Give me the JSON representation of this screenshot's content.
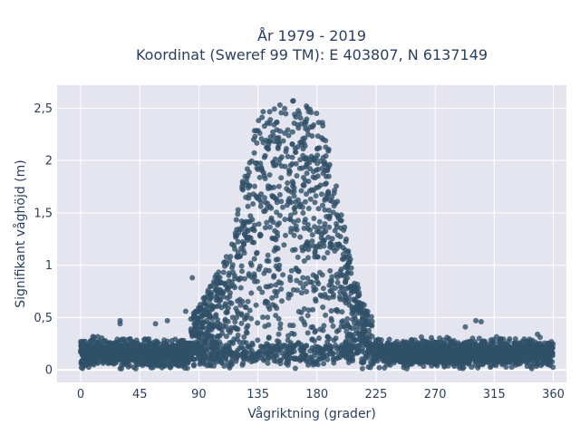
{
  "chart_data": {
    "type": "scatter",
    "title_line1": "År 1979 - 2019",
    "title_line2": "Koordinat (Sweref 99 TM): E 403807, N 6137149",
    "xlabel": "Vågriktning (grader)",
    "ylabel": "Signifikant våghöjd (m)",
    "xlim": [
      -18,
      370
    ],
    "ylim": [
      -0.12,
      2.72
    ],
    "x_ticks": [
      0,
      45,
      90,
      135,
      180,
      225,
      270,
      315,
      360
    ],
    "x_tick_labels": [
      "0",
      "45",
      "90",
      "135",
      "180",
      "225",
      "270",
      "315",
      "360"
    ],
    "y_ticks": [
      0,
      0.5,
      1,
      1.5,
      2,
      2.5
    ],
    "y_tick_labels": [
      "0",
      "0,5",
      "1",
      "1,5",
      "2",
      "2,5"
    ],
    "grid": true,
    "colors": {
      "marker": "#2f5068",
      "plot_bg": "#e5e5ef",
      "grid": "#ffffff",
      "text": "#2a3f5f"
    },
    "envelope_upper": {
      "x": [
        0,
        20,
        40,
        60,
        80,
        90,
        100,
        110,
        115,
        120,
        125,
        130,
        135,
        140,
        145,
        150,
        155,
        160,
        165,
        170,
        175,
        180,
        185,
        190,
        195,
        200,
        205,
        210,
        215,
        220,
        225,
        235,
        250,
        270,
        290,
        310,
        330,
        345,
        360
      ],
      "y": [
        0.25,
        0.27,
        0.3,
        0.35,
        0.45,
        0.6,
        0.85,
        1.1,
        1.25,
        1.55,
        1.95,
        2.3,
        2.45,
        2.5,
        2.48,
        2.52,
        2.55,
        2.58,
        2.56,
        2.52,
        2.55,
        2.5,
        2.35,
        2.05,
        1.75,
        1.45,
        1.1,
        0.85,
        0.65,
        0.55,
        0.45,
        0.35,
        0.32,
        0.3,
        0.28,
        0.28,
        0.27,
        0.3,
        0.28
      ]
    },
    "baseline_median": 0.16,
    "outliers": [
      {
        "x": 30,
        "y": 0.47
      },
      {
        "x": 30,
        "y": 0.44
      },
      {
        "x": 57,
        "y": 0.44
      },
      {
        "x": 66,
        "y": 0.47
      },
      {
        "x": 85,
        "y": 0.88
      },
      {
        "x": 80,
        "y": 0.56
      },
      {
        "x": 86,
        "y": 0.54
      },
      {
        "x": 92,
        "y": 0.58
      },
      {
        "x": 293,
        "y": 0.41
      },
      {
        "x": 301,
        "y": 0.47
      },
      {
        "x": 305,
        "y": 0.46
      },
      {
        "x": 348,
        "y": 0.34
      },
      {
        "x": 350,
        "y": 0.31
      },
      {
        "x": 10,
        "y": 0.31
      },
      {
        "x": 172,
        "y": 2.52
      },
      {
        "x": 162,
        "y": 2.57
      }
    ]
  }
}
